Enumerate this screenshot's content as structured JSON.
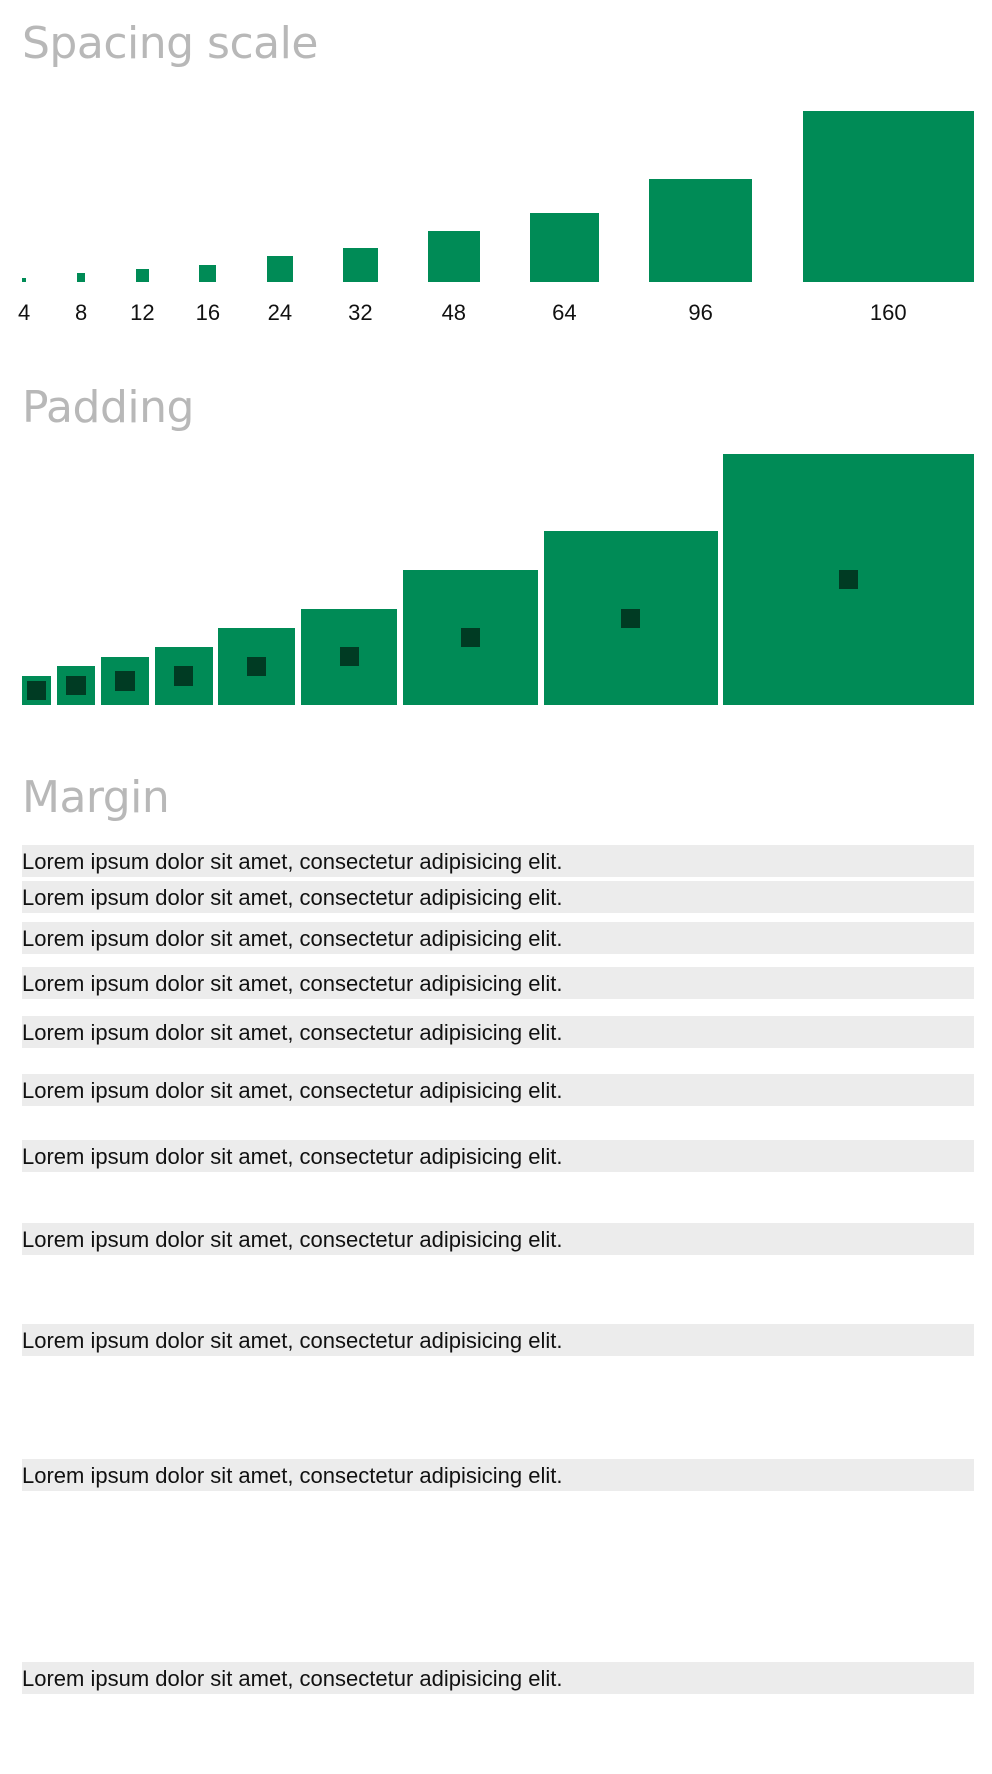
{
  "sections": {
    "spacing_scale_title": "Spacing scale",
    "padding_title": "Padding",
    "margin_title": "Margin"
  },
  "colors": {
    "accent_green": "#008b56",
    "inner_dark_green": "#003b23",
    "row_background": "#ececec",
    "title_gray": "#b8b8b8"
  },
  "spacing_scale": {
    "steps": [
      {
        "label": "4",
        "value": 4
      },
      {
        "label": "8",
        "value": 8
      },
      {
        "label": "12",
        "value": 12
      },
      {
        "label": "16",
        "value": 16
      },
      {
        "label": "24",
        "value": 24
      },
      {
        "label": "32",
        "value": 32
      },
      {
        "label": "48",
        "value": 48
      },
      {
        "label": "64",
        "value": 64
      },
      {
        "label": "96",
        "value": 96
      },
      {
        "label": "160",
        "value": 160
      }
    ]
  },
  "padding": {
    "values": [
      4,
      8,
      12,
      16,
      24,
      32,
      48,
      64,
      96
    ]
  },
  "margin": {
    "rows": [
      {
        "text": "Lorem ipsum dolor sit amet, consectetur adipisicing elit.",
        "value": 4
      },
      {
        "text": "Lorem ipsum dolor sit amet, consectetur adipisicing elit.",
        "value": 8
      },
      {
        "text": "Lorem ipsum dolor sit amet, consectetur adipisicing elit.",
        "value": 12
      },
      {
        "text": "Lorem ipsum dolor sit amet, consectetur adipisicing elit.",
        "value": 16
      },
      {
        "text": "Lorem ipsum dolor sit amet, consectetur adipisicing elit.",
        "value": 24
      },
      {
        "text": "Lorem ipsum dolor sit amet, consectetur adipisicing elit.",
        "value": 32
      },
      {
        "text": "Lorem ipsum dolor sit amet, consectetur adipisicing elit.",
        "value": 48
      },
      {
        "text": "Lorem ipsum dolor sit amet, consectetur adipisicing elit.",
        "value": 64
      },
      {
        "text": "Lorem ipsum dolor sit amet, consectetur adipisicing elit.",
        "value": 96
      },
      {
        "text": "Lorem ipsum dolor sit amet, consectetur adipisicing elit.",
        "value": 160
      },
      {
        "text": "Lorem ipsum dolor sit amet, consectetur adipisicing elit."
      }
    ]
  }
}
